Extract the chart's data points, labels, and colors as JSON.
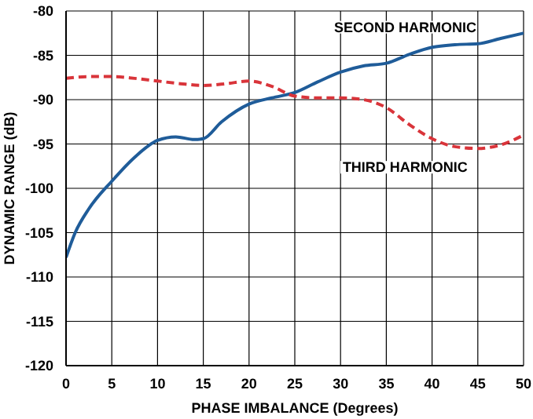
{
  "chart_data": {
    "type": "line",
    "xlabel": "PHASE IMBALANCE (Degrees)",
    "ylabel": "DYNAMIC RANGE (dB)",
    "xlim": [
      0,
      50
    ],
    "xticks": [
      0,
      5,
      10,
      15,
      20,
      25,
      30,
      35,
      40,
      45,
      50
    ],
    "ylim": [
      -120,
      -80
    ],
    "yticks": [
      -120,
      -115,
      -110,
      -105,
      -100,
      -95,
      -90,
      -85,
      -80
    ],
    "grid": true,
    "legend": false,
    "marker": "none",
    "series": [
      {
        "name": "SECOND HARMONIC",
        "color": "#1f5c99",
        "line_style": "solid",
        "x": [
          0,
          1,
          2.5,
          5,
          7.5,
          10,
          12,
          14,
          15,
          17,
          20,
          22.5,
          25,
          27.5,
          30,
          32.5,
          35,
          37.5,
          40,
          42.5,
          45,
          47.5,
          50
        ],
        "values": [
          -107.8,
          -105,
          -102.3,
          -99.2,
          -96.5,
          -94.6,
          -94.2,
          -94.5,
          -94.4,
          -92.5,
          -90.5,
          -89.8,
          -89.2,
          -88,
          -86.9,
          -86.2,
          -85.9,
          -84.9,
          -84.1,
          -83.8,
          -83.7,
          -83.1,
          -82.5
        ]
      },
      {
        "name": "THIRD HARMONIC",
        "color": "#d9343a",
        "line_style": "dashed",
        "x": [
          0,
          2.5,
          5,
          7.5,
          10,
          12.5,
          15,
          17.5,
          20,
          22.5,
          25,
          27.5,
          30,
          32.5,
          35,
          37.5,
          40,
          42.5,
          45,
          47.5,
          50
        ],
        "values": [
          -87.6,
          -87.4,
          -87.4,
          -87.6,
          -87.9,
          -88.2,
          -88.4,
          -88.2,
          -87.9,
          -88.5,
          -89.6,
          -89.8,
          -89.8,
          -90,
          -90.9,
          -92.8,
          -94.4,
          -95.3,
          -95.5,
          -95.1,
          -94
        ]
      }
    ]
  }
}
